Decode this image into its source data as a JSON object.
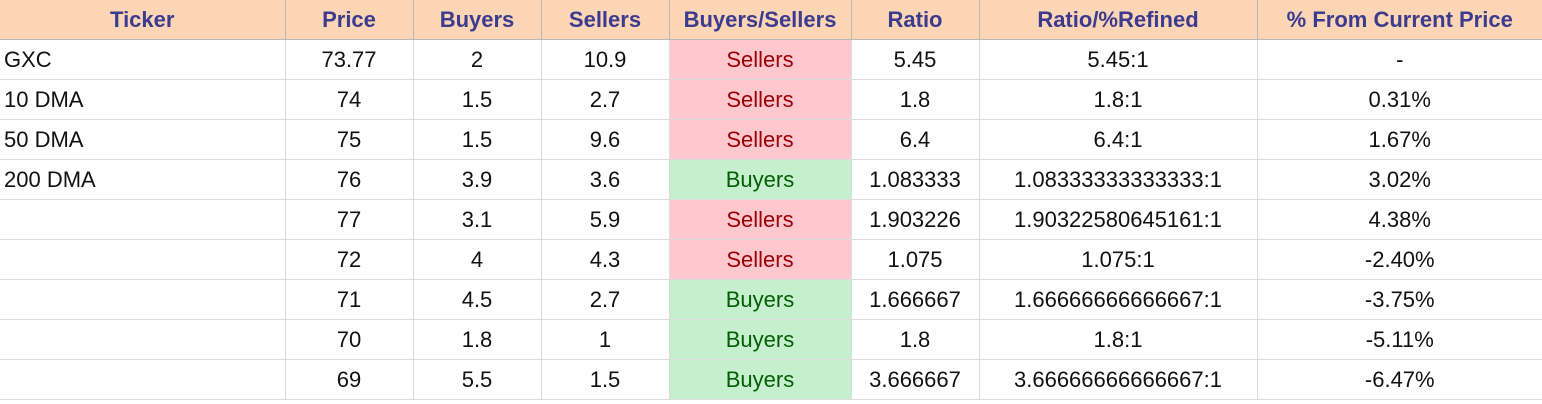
{
  "table": {
    "headers": [
      "Ticker",
      "Price",
      "Buyers",
      "Sellers",
      "Buyers/Sellers",
      "Ratio",
      "Ratio/%Refined",
      "% From Current Price"
    ],
    "rows": [
      [
        "GXC",
        "73.77",
        "2",
        "10.9",
        "Sellers",
        "5.45",
        "5.45:1",
        "-"
      ],
      [
        "10 DMA",
        "74",
        "1.5",
        "2.7",
        "Sellers",
        "1.8",
        "1.8:1",
        "0.31%"
      ],
      [
        "50 DMA",
        "75",
        "1.5",
        "9.6",
        "Sellers",
        "6.4",
        "6.4:1",
        "1.67%"
      ],
      [
        "200 DMA",
        "76",
        "3.9",
        "3.6",
        "Buyers",
        "1.083333",
        "1.08333333333333:1",
        "3.02%"
      ],
      [
        "",
        "77",
        "3.1",
        "5.9",
        "Sellers",
        "1.903226",
        "1.90322580645161:1",
        "4.38%"
      ],
      [
        "",
        "72",
        "4",
        "4.3",
        "Sellers",
        "1.075",
        "1.075:1",
        "-2.40%"
      ],
      [
        "",
        "71",
        "4.5",
        "2.7",
        "Buyers",
        "1.666667",
        "1.66666666666667:1",
        "-3.75%"
      ],
      [
        "",
        "70",
        "1.8",
        "1",
        "Buyers",
        "1.8",
        "1.8:1",
        "-5.11%"
      ],
      [
        "",
        "69",
        "5.5",
        "1.5",
        "Buyers",
        "3.666667",
        "3.66666666666667:1",
        "-6.47%"
      ]
    ]
  },
  "colors": {
    "header_bg": "#fcd5b4",
    "header_text": "#3b3b8f",
    "sellers_bg": "#ffc7ce",
    "sellers_text": "#9c0006",
    "buyers_bg": "#c6efce",
    "buyers_text": "#006100"
  }
}
